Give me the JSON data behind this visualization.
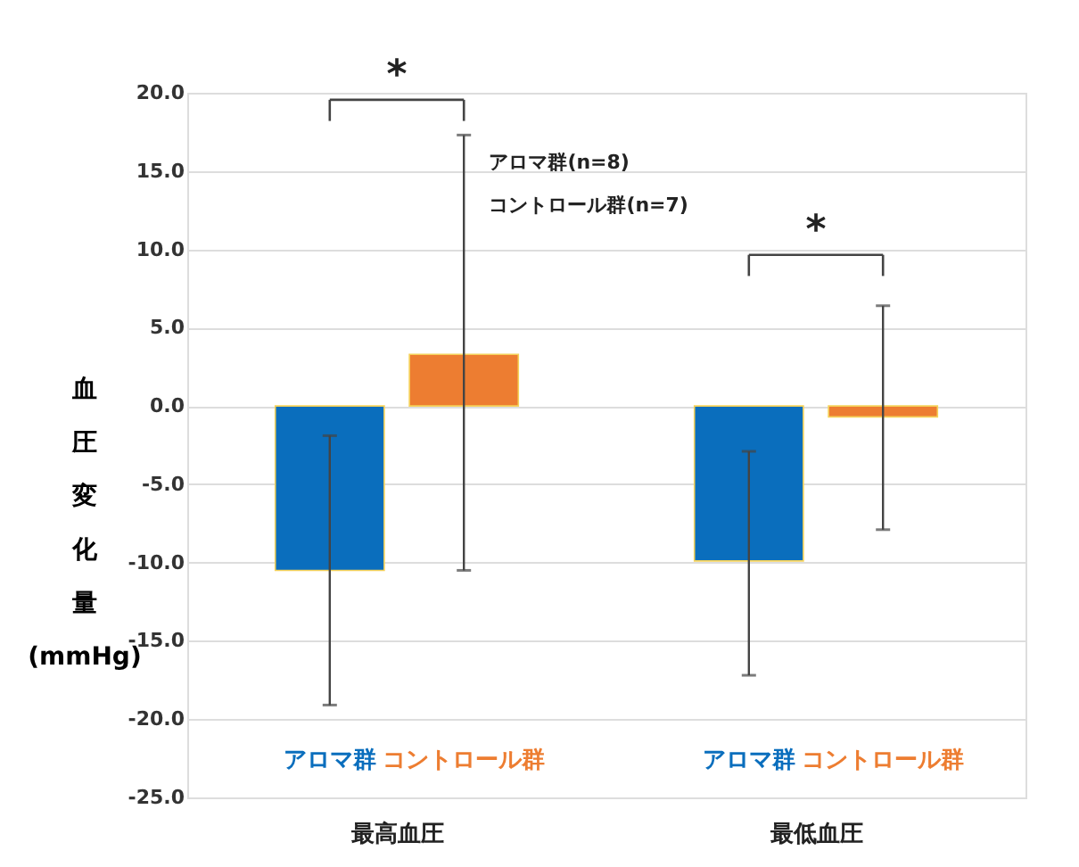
{
  "chart_data": {
    "type": "bar",
    "ylabel": "血圧変化量(mmHg)",
    "categories": [
      "最高血圧",
      "最低血圧"
    ],
    "series": [
      {
        "name": "アロマ群",
        "color": "#0a6ebd",
        "values": [
          -10.5,
          -9.9
        ],
        "errors": [
          [
            -19.1,
            -1.9
          ],
          [
            -17.2,
            -2.9
          ]
        ]
      },
      {
        "name": "コントロール群",
        "color": "#ed7d31",
        "values": [
          3.3,
          -0.7
        ],
        "errors": [
          [
            -10.5,
            17.3
          ],
          [
            -7.9,
            6.4
          ]
        ]
      }
    ],
    "ylim": [
      -25,
      20
    ],
    "yticks": [
      {
        "value": -25,
        "label": "-25.0"
      },
      {
        "value": -20,
        "label": "-20.0"
      },
      {
        "value": -15,
        "label": "-15.0"
      },
      {
        "value": -10,
        "label": "-10.0"
      },
      {
        "value": -5,
        "label": "-5.0"
      },
      {
        "value": 0,
        "label": "0.0"
      },
      {
        "value": 5,
        "label": "5.0"
      },
      {
        "value": 10,
        "label": "10.0"
      },
      {
        "value": 15,
        "label": "15.0"
      },
      {
        "value": 20,
        "label": "20.0"
      }
    ],
    "grid": "y",
    "annotations": [
      "*",
      "*",
      "アロマ群(n=8)",
      "コントロール群(n=7)"
    ]
  }
}
